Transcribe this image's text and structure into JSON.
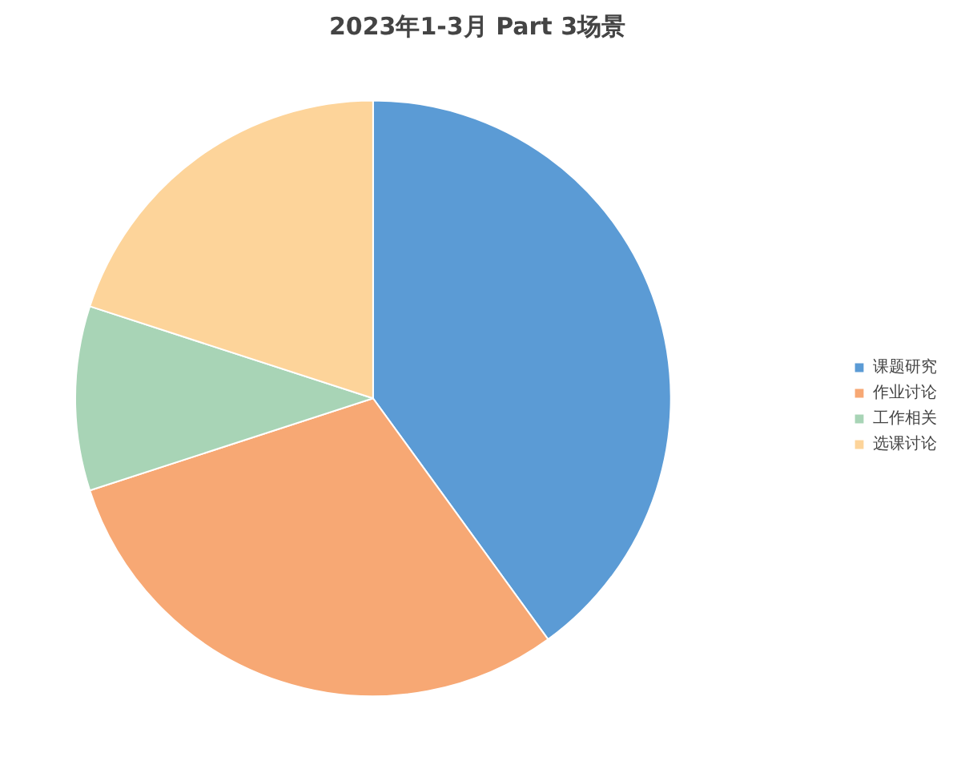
{
  "chart_data": {
    "type": "pie",
    "title": "2023年1-3月 Part 3场景",
    "categories": [
      "课题研究",
      "作业讨论",
      "工作相关",
      "选课讨论"
    ],
    "values": [
      40,
      30,
      10,
      20
    ],
    "colors": [
      "#5b9bd5",
      "#f7a874",
      "#a8d4b6",
      "#fdd49a"
    ],
    "legend": "right"
  }
}
